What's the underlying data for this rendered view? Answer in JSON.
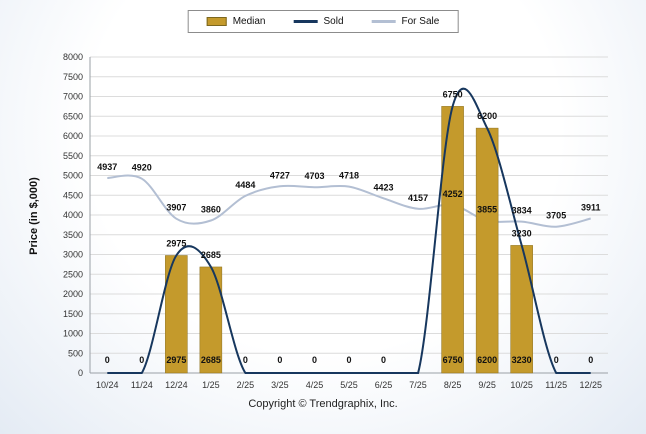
{
  "page": {
    "footer": "Copyright © Trendgraphix, Inc."
  },
  "legend": [
    {
      "label": "Median",
      "type": "bar",
      "color": "#C49A2C"
    },
    {
      "label": "Sold",
      "type": "line",
      "color": "#17375E"
    },
    {
      "label": "For Sale",
      "type": "line",
      "color": "#B3BFD3"
    }
  ],
  "chart_data": {
    "type": "bar+line combo",
    "title": "",
    "xlabel": "",
    "ylabel": "Price (in $,000)",
    "ylim": [
      0,
      8000
    ],
    "ytick_step": 500,
    "grid": true,
    "legend_position": "top-center",
    "categories": [
      "10/24",
      "11/24",
      "12/24",
      "1/25",
      "2/25",
      "3/25",
      "4/25",
      "5/25",
      "6/25",
      "7/25",
      "8/25",
      "9/25",
      "10/25",
      "11/25",
      "12/25"
    ],
    "series": [
      {
        "name": "Median",
        "type": "bar",
        "color": "#C49A2C",
        "values": [
          0,
          0,
          2975,
          2685,
          0,
          0,
          0,
          0,
          0,
          0,
          6750,
          6200,
          3230,
          0,
          0
        ],
        "labels": [
          "0",
          "0",
          "2975",
          "2685",
          "0",
          "0",
          "0",
          "0",
          "0",
          "",
          "6750",
          "6200",
          "3230",
          "0",
          "0"
        ],
        "label_position": "base"
      },
      {
        "name": "Sold",
        "type": "line",
        "color": "#17375E",
        "values": [
          0,
          0,
          2975,
          2685,
          0,
          0,
          0,
          0,
          0,
          0,
          6750,
          6200,
          3230,
          0,
          0
        ],
        "labels": [
          "",
          "",
          "2975",
          "2685",
          "",
          "",
          "",
          "",
          "",
          "",
          "6750",
          "6200",
          "3230",
          "",
          ""
        ],
        "label_position": "above-point"
      },
      {
        "name": "For Sale",
        "type": "line",
        "color": "#B3BFD3",
        "values": [
          4937,
          4920,
          3907,
          3860,
          4484,
          4727,
          4703,
          4718,
          4423,
          4157,
          4252,
          3855,
          3834,
          3705,
          3911
        ],
        "labels": [
          "4937",
          "4920",
          "3907",
          "3860",
          "4484",
          "4727",
          "4703",
          "4718",
          "4423",
          "4157",
          "4252",
          "3855",
          "3834",
          "3705",
          "3911"
        ],
        "label_position": "above-point"
      }
    ]
  }
}
